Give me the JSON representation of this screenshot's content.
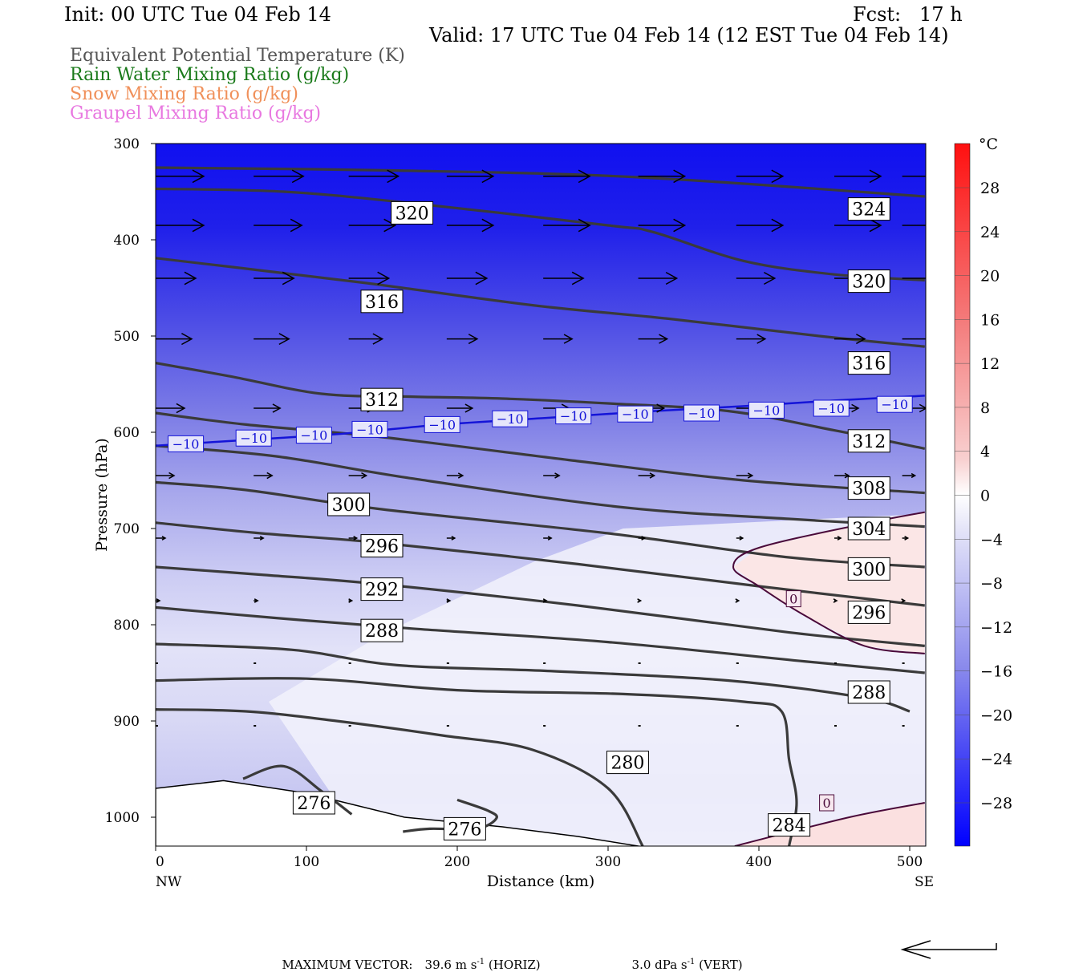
{
  "header": {
    "init": "Init: 00 UTC Tue 04 Feb 14",
    "fcst": "Fcst:   17 h",
    "valid": "Valid: 17 UTC Tue 04 Feb 14 (12 EST Tue 04 Feb 14)"
  },
  "legend": [
    {
      "text": "Equivalent Potential Temperature (K)",
      "color": "#555555"
    },
    {
      "text": "Rain Water Mixing Ratio (g/kg)",
      "color": "#1a7a1a"
    },
    {
      "text": "Snow Mixing Ratio (g/kg)",
      "color": "#f0905a"
    },
    {
      "text": "Graupel Mixing Ratio (g/kg)",
      "color": "#e878e0"
    }
  ],
  "chart_data": {
    "type": "contour",
    "xlabel": "Distance (km)",
    "ylabel": "Pressure (hPa)",
    "xlim": [
      0,
      510
    ],
    "ylim": [
      1030,
      300
    ],
    "x_ticks": [
      "0",
      "100",
      "200",
      "300",
      "400",
      "500"
    ],
    "y_ticks": [
      "300",
      "400",
      "500",
      "600",
      "700",
      "800",
      "900",
      "1000"
    ],
    "x_end_labels": {
      "left": "NW",
      "right": "SE"
    },
    "colorbar": {
      "unit": "°C",
      "labels": [
        "28",
        "24",
        "20",
        "16",
        "12",
        "8",
        "4",
        "0",
        "−4",
        "−8",
        "−12",
        "−16",
        "−20",
        "−24",
        "−28"
      ]
    },
    "theta_e_contours": [
      {
        "label": "324",
        "points": [
          [
            0,
            325
          ],
          [
            160,
            328
          ],
          [
            320,
            335
          ],
          [
            510,
            355
          ]
        ],
        "labels_at": [
          [
            473,
            368
          ]
        ]
      },
      {
        "label": "320",
        "points": [
          [
            0,
            347
          ],
          [
            85,
            350
          ],
          [
            170,
            362
          ],
          [
            300,
            385
          ],
          [
            330,
            392
          ],
          [
            390,
            422
          ],
          [
            450,
            436
          ],
          [
            510,
            442
          ]
        ],
        "labels_at": [
          [
            170,
            372
          ],
          [
            473,
            443
          ]
        ]
      },
      {
        "label": "316",
        "points": [
          [
            0,
            419
          ],
          [
            60,
            430
          ],
          [
            140,
            445
          ],
          [
            250,
            468
          ],
          [
            340,
            482
          ],
          [
            440,
            500
          ],
          [
            510,
            511
          ]
        ],
        "labels_at": [
          [
            150,
            464
          ],
          [
            473,
            528
          ]
        ]
      },
      {
        "label": "312",
        "points": [
          [
            0,
            528
          ],
          [
            50,
            542
          ],
          [
            110,
            560
          ],
          [
            170,
            563
          ],
          [
            230,
            565
          ],
          [
            300,
            570
          ],
          [
            380,
            578
          ],
          [
            450,
            598
          ],
          [
            510,
            617
          ]
        ],
        "labels_at": [
          [
            150,
            566
          ],
          [
            473,
            609
          ]
        ]
      },
      {
        "label": "308",
        "points": [
          [
            0,
            580
          ],
          [
            60,
            592
          ],
          [
            150,
            605
          ],
          [
            280,
            630
          ],
          [
            390,
            650
          ],
          [
            510,
            663
          ]
        ],
        "labels_at": [
          [
            473,
            658
          ]
        ]
      },
      {
        "label": "304",
        "points": [
          [
            0,
            614
          ],
          [
            80,
            625
          ],
          [
            170,
            648
          ],
          [
            310,
            678
          ],
          [
            420,
            690
          ],
          [
            510,
            698
          ]
        ],
        "labels_at": [
          [
            473,
            700
          ]
        ]
      },
      {
        "label": "300",
        "points": [
          [
            0,
            652
          ],
          [
            60,
            660
          ],
          [
            150,
            680
          ],
          [
            300,
            705
          ],
          [
            420,
            730
          ],
          [
            510,
            740
          ]
        ],
        "labels_at": [
          [
            128,
            675
          ],
          [
            473,
            742
          ]
        ]
      },
      {
        "label": "296",
        "points": [
          [
            0,
            694
          ],
          [
            70,
            705
          ],
          [
            150,
            715
          ],
          [
            280,
            737
          ],
          [
            400,
            760
          ],
          [
            510,
            780
          ]
        ],
        "labels_at": [
          [
            150,
            718
          ],
          [
            473,
            787
          ]
        ]
      },
      {
        "label": "292",
        "points": [
          [
            0,
            740
          ],
          [
            70,
            748
          ],
          [
            150,
            758
          ],
          [
            280,
            780
          ],
          [
            420,
            808
          ],
          [
            510,
            822
          ]
        ],
        "labels_at": [
          [
            150,
            763
          ]
        ]
      },
      {
        "label": "288",
        "points": [
          [
            0,
            782
          ],
          [
            80,
            793
          ],
          [
            170,
            804
          ],
          [
            300,
            818
          ],
          [
            430,
            838
          ],
          [
            510,
            850
          ]
        ],
        "labels_at": [
          [
            150,
            806
          ],
          [
            473,
            870
          ]
        ]
      },
      {
        "label": "284",
        "points": [
          [
            0,
            820
          ],
          [
            90,
            826
          ],
          [
            160,
            842
          ],
          [
            260,
            848
          ],
          [
            380,
            858
          ],
          [
            470,
            876
          ],
          [
            500,
            890
          ]
        ],
        "labels_at": []
      },
      {
        "label": "284",
        "points": [
          [
            0,
            858
          ],
          [
            100,
            856
          ],
          [
            200,
            868
          ],
          [
            310,
            872
          ],
          [
            390,
            880
          ],
          [
            415,
            890
          ],
          [
            420,
            940
          ],
          [
            425,
            985
          ],
          [
            420,
            1030
          ]
        ],
        "labels_at": [
          [
            420,
            1008
          ]
        ]
      },
      {
        "label": "280",
        "points": [
          [
            0,
            888
          ],
          [
            60,
            890
          ],
          [
            120,
            900
          ],
          [
            190,
            915
          ],
          [
            250,
            930
          ],
          [
            300,
            970
          ],
          [
            323,
            1030
          ]
        ],
        "labels_at": [
          [
            313,
            943
          ]
        ]
      },
      {
        "label": "276",
        "points": [
          [
            200,
            982
          ],
          [
            220,
            993
          ],
          [
            226,
            1001
          ],
          [
            213,
            1012
          ],
          [
            182,
            1012
          ],
          [
            164,
            1015
          ]
        ],
        "labels_at": [
          [
            205,
            1012
          ]
        ]
      },
      {
        "label": "276",
        "points": [
          [
            58,
            960
          ],
          [
            85,
            947
          ],
          [
            110,
            973
          ],
          [
            130,
            997
          ]
        ],
        "labels_at": [
          [
            105,
            985
          ]
        ]
      }
    ],
    "isotherms": [
      {
        "label": "−10",
        "points": [
          [
            0,
            614
          ],
          [
            60,
            608
          ],
          [
            120,
            602
          ],
          [
            190,
            592
          ],
          [
            260,
            585
          ],
          [
            330,
            578
          ],
          [
            400,
            572
          ],
          [
            450,
            567
          ],
          [
            510,
            562
          ]
        ],
        "labels_at": [
          [
            20,
            612
          ],
          [
            65,
            606
          ],
          [
            105,
            603
          ],
          [
            142,
            597
          ],
          [
            190,
            592
          ],
          [
            235,
            586
          ],
          [
            277,
            583
          ],
          [
            318,
            581
          ],
          [
            362,
            580
          ],
          [
            405,
            577
          ],
          [
            448,
            575
          ],
          [
            490,
            571
          ]
        ]
      },
      {
        "label": "0",
        "points": [
          [
            384,
            1030
          ],
          [
            460,
            1000
          ],
          [
            510,
            985
          ]
        ],
        "labels_at": [
          [
            445,
            985
          ]
        ]
      },
      {
        "label": "0",
        "points": [
          [
            510,
            683
          ],
          [
            470,
            695
          ],
          [
            400,
            720
          ],
          [
            383,
            740
          ],
          [
            400,
            760
          ],
          [
            430,
            790
          ],
          [
            470,
            822
          ],
          [
            510,
            830
          ]
        ],
        "labels_at": [
          [
            423,
            773
          ]
        ]
      }
    ],
    "terrain_pressure": [
      [
        0,
        970
      ],
      [
        45,
        962
      ],
      [
        100,
        975
      ],
      [
        165,
        1000
      ],
      [
        230,
        1010
      ],
      [
        280,
        1020
      ],
      [
        320,
        1030
      ]
    ],
    "vectors": [
      {
        "p": 334,
        "xs": [
          0,
          65,
          128,
          193,
          257,
          320,
          385,
          450,
          495
        ],
        "lens": [
          60,
          62,
          62,
          58,
          58,
          58,
          58,
          58,
          55
        ]
      },
      {
        "p": 385,
        "xs": [
          0,
          65,
          128,
          193,
          257,
          320,
          385,
          450,
          495
        ],
        "lens": [
          60,
          60,
          58,
          58,
          58,
          58,
          58,
          58,
          58
        ]
      },
      {
        "p": 440,
        "xs": [
          0,
          65,
          128,
          193,
          257,
          320,
          385,
          450,
          495
        ],
        "lens": [
          50,
          50,
          50,
          50,
          50,
          48,
          48,
          52,
          58
        ]
      },
      {
        "p": 503,
        "xs": [
          0,
          65,
          128,
          193,
          257,
          320,
          385,
          450,
          495
        ],
        "lens": [
          45,
          44,
          42,
          38,
          36,
          36,
          36,
          38,
          44
        ]
      },
      {
        "p": 575,
        "xs": [
          0,
          65,
          128,
          193,
          257,
          320,
          385,
          450,
          495
        ],
        "lens": [
          36,
          33,
          32,
          32,
          32,
          32,
          32,
          30,
          30
        ]
      },
      {
        "p": 645,
        "xs": [
          0,
          65,
          128,
          193,
          257,
          320,
          385,
          450,
          495
        ],
        "lens": [
          23,
          23,
          22,
          20,
          20,
          20,
          20,
          18,
          16
        ]
      },
      {
        "p": 710,
        "xs": [
          0,
          65,
          128,
          193,
          257,
          320,
          385,
          450,
          495
        ],
        "lens": [
          12,
          12,
          10,
          10,
          10,
          8,
          8,
          8,
          7
        ]
      },
      {
        "p": 775,
        "xs": [
          0,
          65,
          128,
          193,
          257,
          320,
          385,
          450,
          495
        ],
        "lens": [
          5,
          5,
          4,
          4,
          4,
          3,
          3,
          3,
          3
        ]
      },
      {
        "p": 840,
        "xs": [
          0,
          65,
          128,
          193,
          257,
          320,
          385,
          450,
          495
        ],
        "lens": [
          2,
          2,
          2,
          2,
          2,
          1,
          1,
          1,
          1
        ]
      },
      {
        "p": 905,
        "xs": [
          0,
          65,
          128,
          193,
          257,
          320,
          385,
          450,
          495
        ],
        "lens": [
          1,
          1,
          1,
          1,
          1,
          1,
          1,
          1,
          1
        ]
      }
    ]
  },
  "footer": {
    "max_vector_label": "MAXIMUM VECTOR:",
    "horiz_value": "39.6 m s",
    "horiz_suffix": " (HORIZ)",
    "vert_value": "3.0 dPa s",
    "vert_suffix": " (VERT)",
    "exponent": "-1"
  }
}
